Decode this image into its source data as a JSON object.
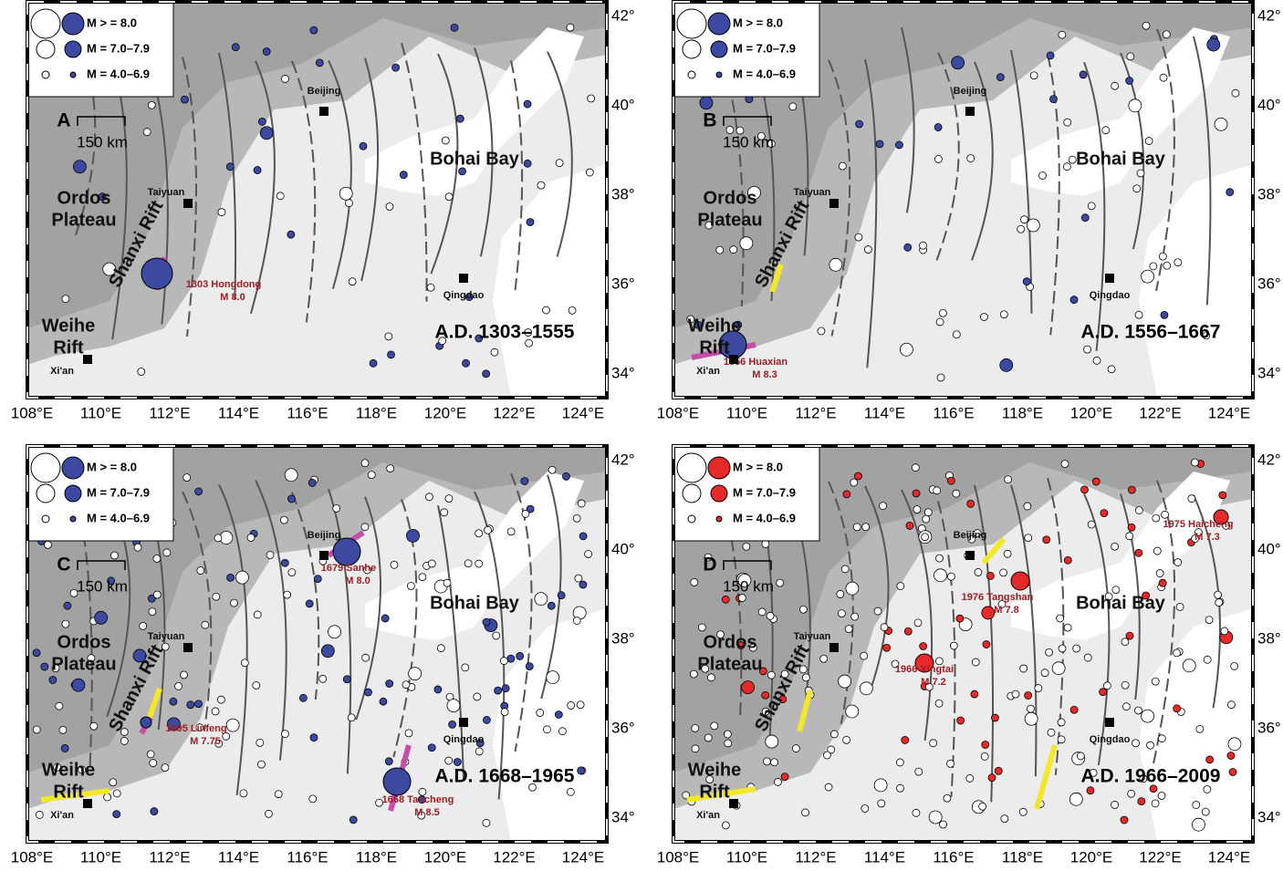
{
  "legend": [
    "M > = 8.0",
    "M = 7.0–7.9",
    "M = 4.0–6.9"
  ],
  "lon_labels": [
    "108°E",
    "110°E",
    "112°E",
    "114°E",
    "116°E",
    "118°E",
    "120°E",
    "122°E",
    "124°E"
  ],
  "lat_labels": [
    "42°",
    "40°",
    "38°",
    "36°",
    "34°"
  ],
  "scale_bar": "150 km",
  "places": [
    {
      "lines": [
        "Beijing"
      ]
    },
    {
      "lines": [
        "Taiyuan"
      ]
    },
    {
      "lines": [
        "Xi'an"
      ]
    },
    {
      "lines": [
        "Qingdao"
      ]
    },
    {
      "lines": [
        "Bohai Bay"
      ]
    },
    {
      "lines": [
        "Ordos",
        "Plateau"
      ]
    },
    {
      "lines": [
        "Shanxi Rift"
      ]
    },
    {
      "lines": [
        "Weihe",
        "Rift"
      ]
    }
  ],
  "panels": [
    {
      "letter": "A",
      "period": "A.D. 1303–1555",
      "color": "#3b4aa0",
      "events": [
        {
          "name": "1303 Hongdong",
          "magnitude": "M 8.0"
        }
      ]
    },
    {
      "letter": "B",
      "period": "A.D. 1556–1667",
      "color": "#3b4aa0",
      "events": [
        {
          "name": "1556 Huaxian",
          "magnitude": "M 8.3"
        }
      ]
    },
    {
      "letter": "C",
      "period": "A.D. 1668–1965",
      "color": "#3b4aa0",
      "events": [
        {
          "name": "1679 Sanhe",
          "magnitude": "M 8.0"
        },
        {
          "name": "1695 Linfeng",
          "magnitude": "M 7.75"
        },
        {
          "name": "1668 Tancheng",
          "magnitude": "M 8.5"
        }
      ]
    },
    {
      "letter": "D",
      "period": "A.D. 1966–2009",
      "color": "#e62a2a",
      "events": [
        {
          "name": "1976 Tangshan",
          "magnitude": "M 7.8"
        },
        {
          "name": "1966 Xingtai",
          "magnitude": "M 7.2"
        },
        {
          "name": "1975 Haicheng",
          "magnitude": "M 7.3"
        }
      ]
    }
  ]
}
